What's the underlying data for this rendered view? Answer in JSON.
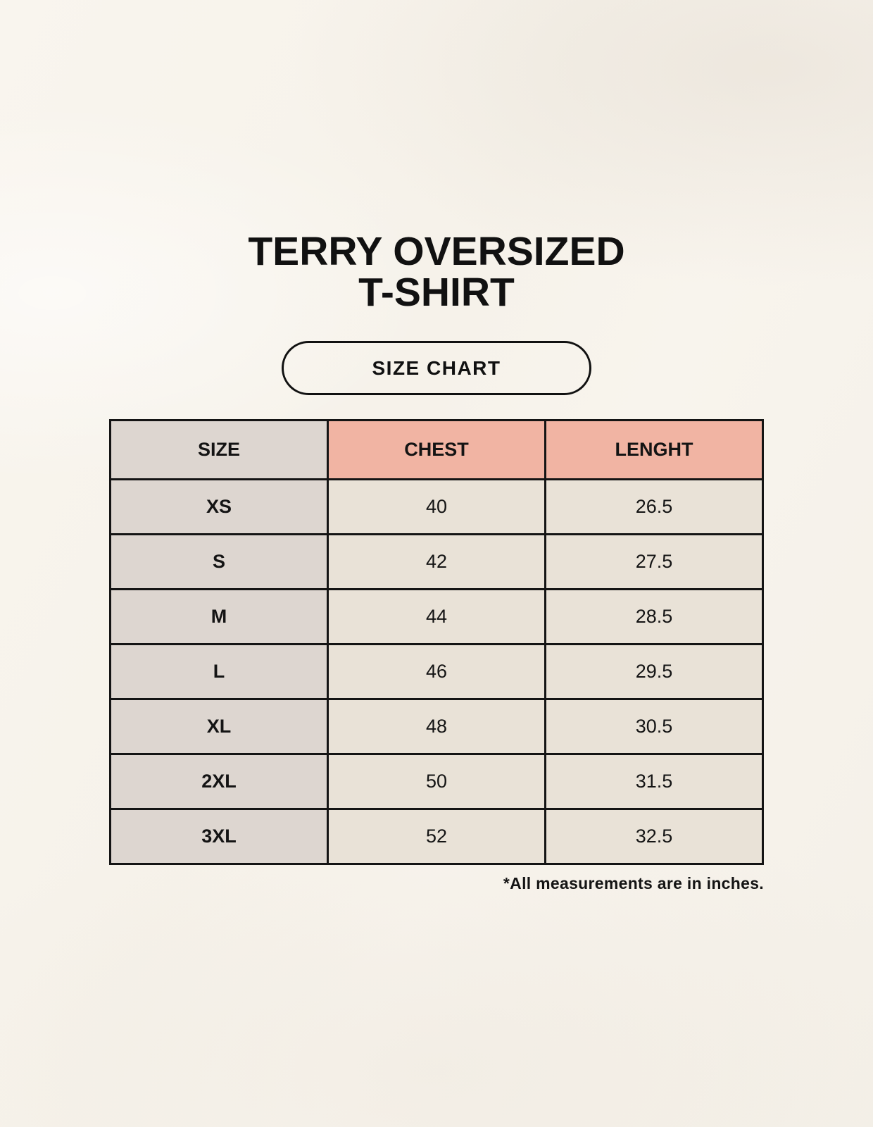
{
  "page": {
    "title_line1": "TERRY OVERSIZED",
    "title_line2": "T-SHIRT",
    "size_chart_label": "SIZE CHART",
    "footnote": "*All measurements are in inches."
  },
  "chart_data": {
    "type": "table",
    "title": "TERRY OVERSIZED T-SHIRT — SIZE CHART",
    "columns": [
      "SIZE",
      "CHEST",
      "LENGHT"
    ],
    "rows": [
      [
        "XS",
        "40",
        "26.5"
      ],
      [
        "S",
        "42",
        "27.5"
      ],
      [
        "M",
        "44",
        "28.5"
      ],
      [
        "L",
        "46",
        "29.5"
      ],
      [
        "XL",
        "48",
        "30.5"
      ],
      [
        "2XL",
        "50",
        "31.5"
      ],
      [
        "3XL",
        "52",
        "32.5"
      ]
    ],
    "units_note": "*All measurements are in inches."
  },
  "colors": {
    "background": "#f7f3ec",
    "header_size_bg": "#ddd6d0",
    "header_measure_bg": "#f1b4a3",
    "size_col_bg": "#ddd6d0",
    "data_cell_bg": "#e9e2d7",
    "border": "#141414",
    "text": "#141414"
  }
}
